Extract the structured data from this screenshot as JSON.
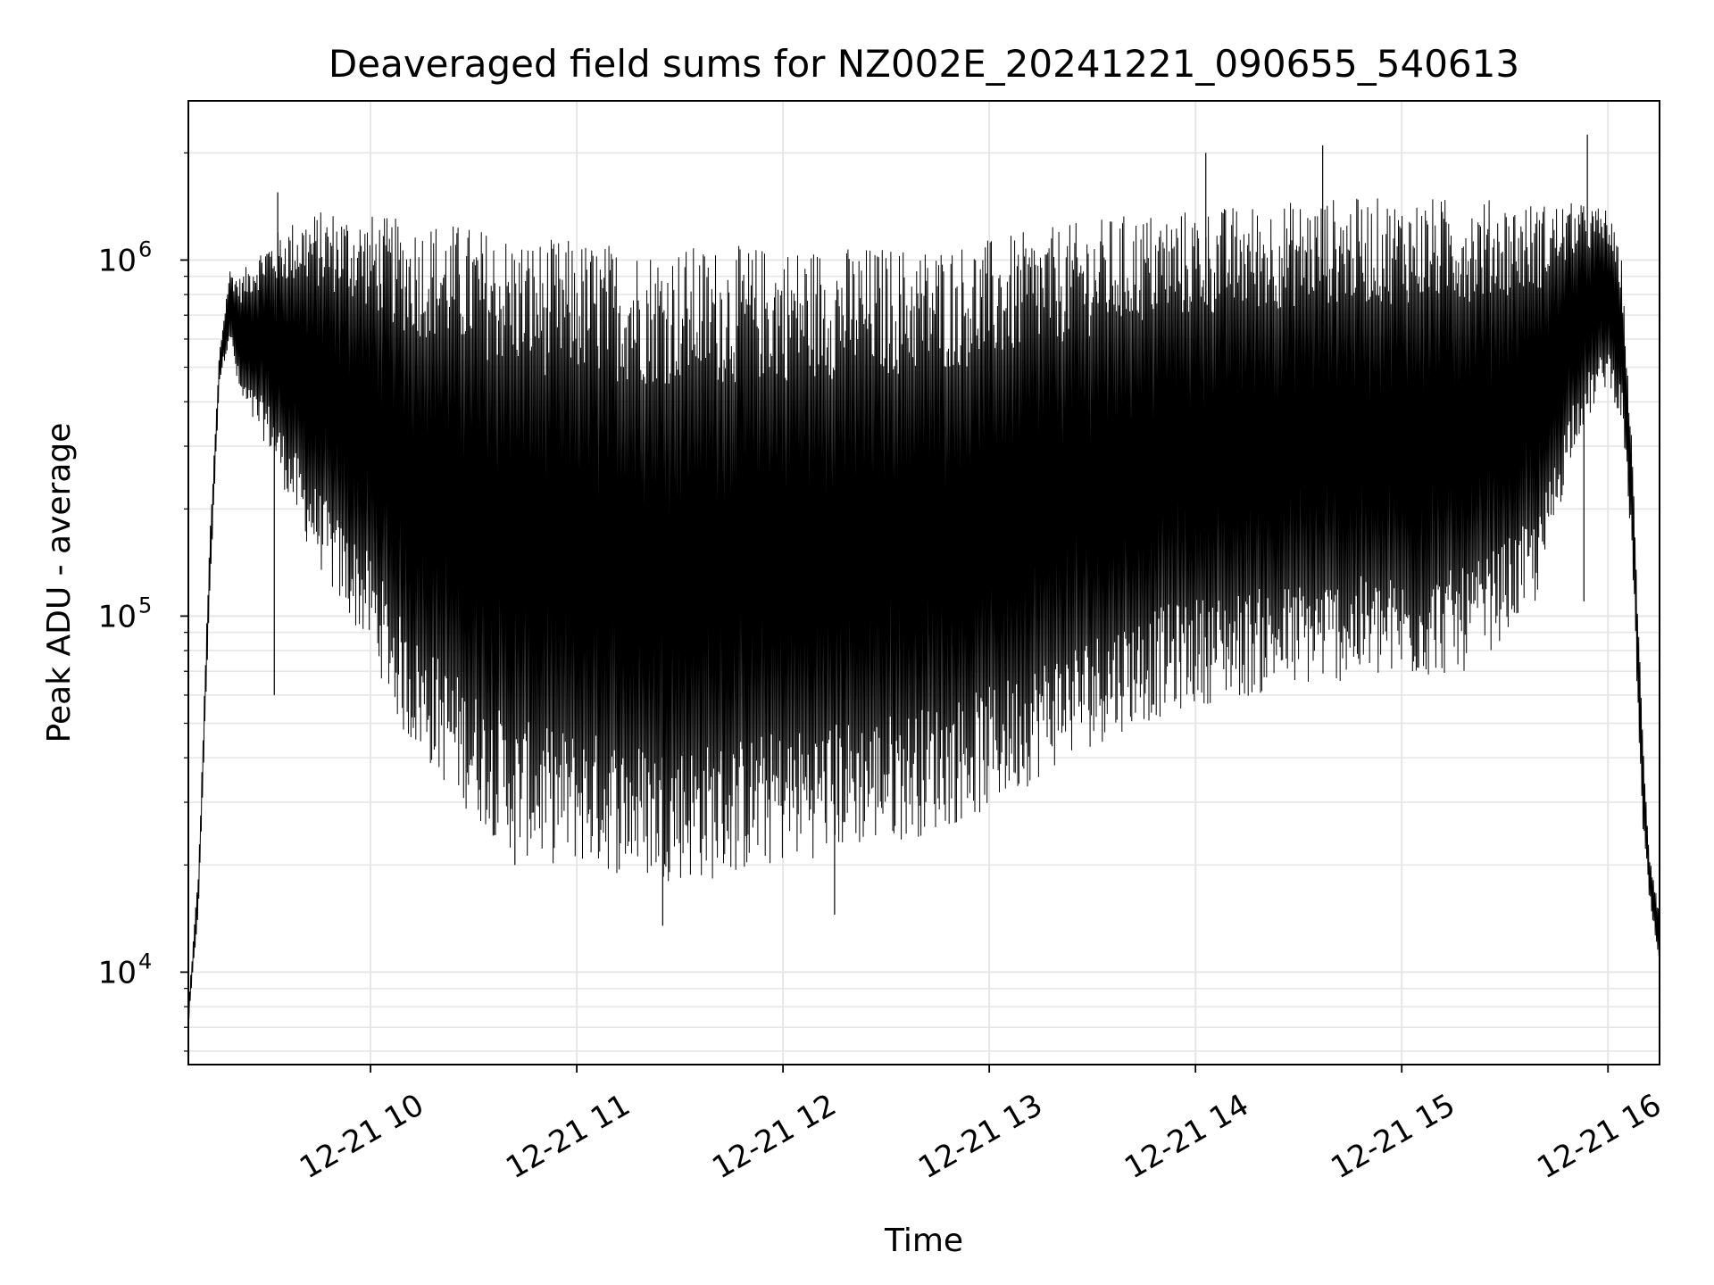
{
  "chart_data": {
    "type": "line",
    "title": "Deaveraged field sums for NZ002E_20241221_090655_540613",
    "xlabel": "Time",
    "ylabel": "Peak ADU - average",
    "y_scale": "log",
    "ylim": [
      5500,
      2800000
    ],
    "xlim": [
      "2024-12-21 09:07",
      "2024-12-21 16:15"
    ],
    "grid": true,
    "line_color": "#000000",
    "grid_color": "#e6e6e6",
    "x_ticks": [
      {
        "value": "2024-12-21 10:00",
        "label": "12-21 10"
      },
      {
        "value": "2024-12-21 11:00",
        "label": "12-21 11"
      },
      {
        "value": "2024-12-21 12:00",
        "label": "12-21 12"
      },
      {
        "value": "2024-12-21 13:00",
        "label": "12-21 13"
      },
      {
        "value": "2024-12-21 14:00",
        "label": "12-21 14"
      },
      {
        "value": "2024-12-21 15:00",
        "label": "12-21 15"
      },
      {
        "value": "2024-12-21 16:00",
        "label": "12-21 16"
      }
    ],
    "y_ticks": [
      {
        "value": 10000,
        "base": "10",
        "exp": "4"
      },
      {
        "value": 100000,
        "base": "10",
        "exp": "5"
      },
      {
        "value": 1000000,
        "base": "10",
        "exp": "6"
      }
    ],
    "envelope": {
      "x": [
        "2024-12-21 09:07",
        "2024-12-21 09:10",
        "2024-12-21 09:13",
        "2024-12-21 09:16",
        "2024-12-21 09:19",
        "2024-12-21 09:22",
        "2024-12-21 09:25",
        "2024-12-21 09:30",
        "2024-12-21 09:40",
        "2024-12-21 09:50",
        "2024-12-21 10:00",
        "2024-12-21 10:10",
        "2024-12-21 10:20",
        "2024-12-21 10:30",
        "2024-12-21 10:40",
        "2024-12-21 10:50",
        "2024-12-21 11:00",
        "2024-12-21 11:20",
        "2024-12-21 11:40",
        "2024-12-21 12:00",
        "2024-12-21 12:20",
        "2024-12-21 12:40",
        "2024-12-21 13:00",
        "2024-12-21 13:20",
        "2024-12-21 13:40",
        "2024-12-21 14:00",
        "2024-12-21 14:20",
        "2024-12-21 14:40",
        "2024-12-21 15:00",
        "2024-12-21 15:20",
        "2024-12-21 15:40",
        "2024-12-21 15:50",
        "2024-12-21 16:00",
        "2024-12-21 16:04",
        "2024-12-21 16:07",
        "2024-12-21 16:10",
        "2024-12-21 16:12",
        "2024-12-21 16:15"
      ],
      "upper": [
        8000,
        20000,
        150000,
        550000,
        950000,
        900000,
        1000000,
        1150000,
        1350000,
        1400000,
        1350000,
        1300000,
        1300000,
        1250000,
        1200000,
        1150000,
        1150000,
        1100000,
        1100000,
        1100000,
        1100000,
        1100000,
        1150000,
        1250000,
        1350000,
        1400000,
        1450000,
        1500000,
        1500000,
        1500000,
        1450000,
        1450000,
        1400000,
        1000000,
        300000,
        50000,
        22000,
        15000
      ],
      "lower": [
        7000,
        15000,
        100000,
        450000,
        600000,
        400000,
        350000,
        300000,
        170000,
        110000,
        80000,
        45000,
        35000,
        27000,
        22000,
        20000,
        20000,
        18000,
        18000,
        20000,
        22000,
        24000,
        28000,
        38000,
        48000,
        56000,
        60000,
        65000,
        65000,
        70000,
        110000,
        300000,
        450000,
        350000,
        150000,
        25000,
        16000,
        10000
      ]
    },
    "spikes": [
      {
        "x": "2024-12-21 09:12",
        "y": 70000
      },
      {
        "x": "2024-12-21 09:32",
        "y": 60000
      },
      {
        "x": "2024-12-21 09:33",
        "y": 1550000
      },
      {
        "x": "2024-12-21 10:42",
        "y": 20000
      },
      {
        "x": "2024-12-21 11:25",
        "y": 13500
      },
      {
        "x": "2024-12-21 12:15",
        "y": 14500
      },
      {
        "x": "2024-12-21 14:03",
        "y": 2000000
      },
      {
        "x": "2024-12-21 14:37",
        "y": 2100000
      },
      {
        "x": "2024-12-21 15:54",
        "y": 2250000
      },
      {
        "x": "2024-12-21 15:53",
        "y": 110000
      }
    ]
  }
}
